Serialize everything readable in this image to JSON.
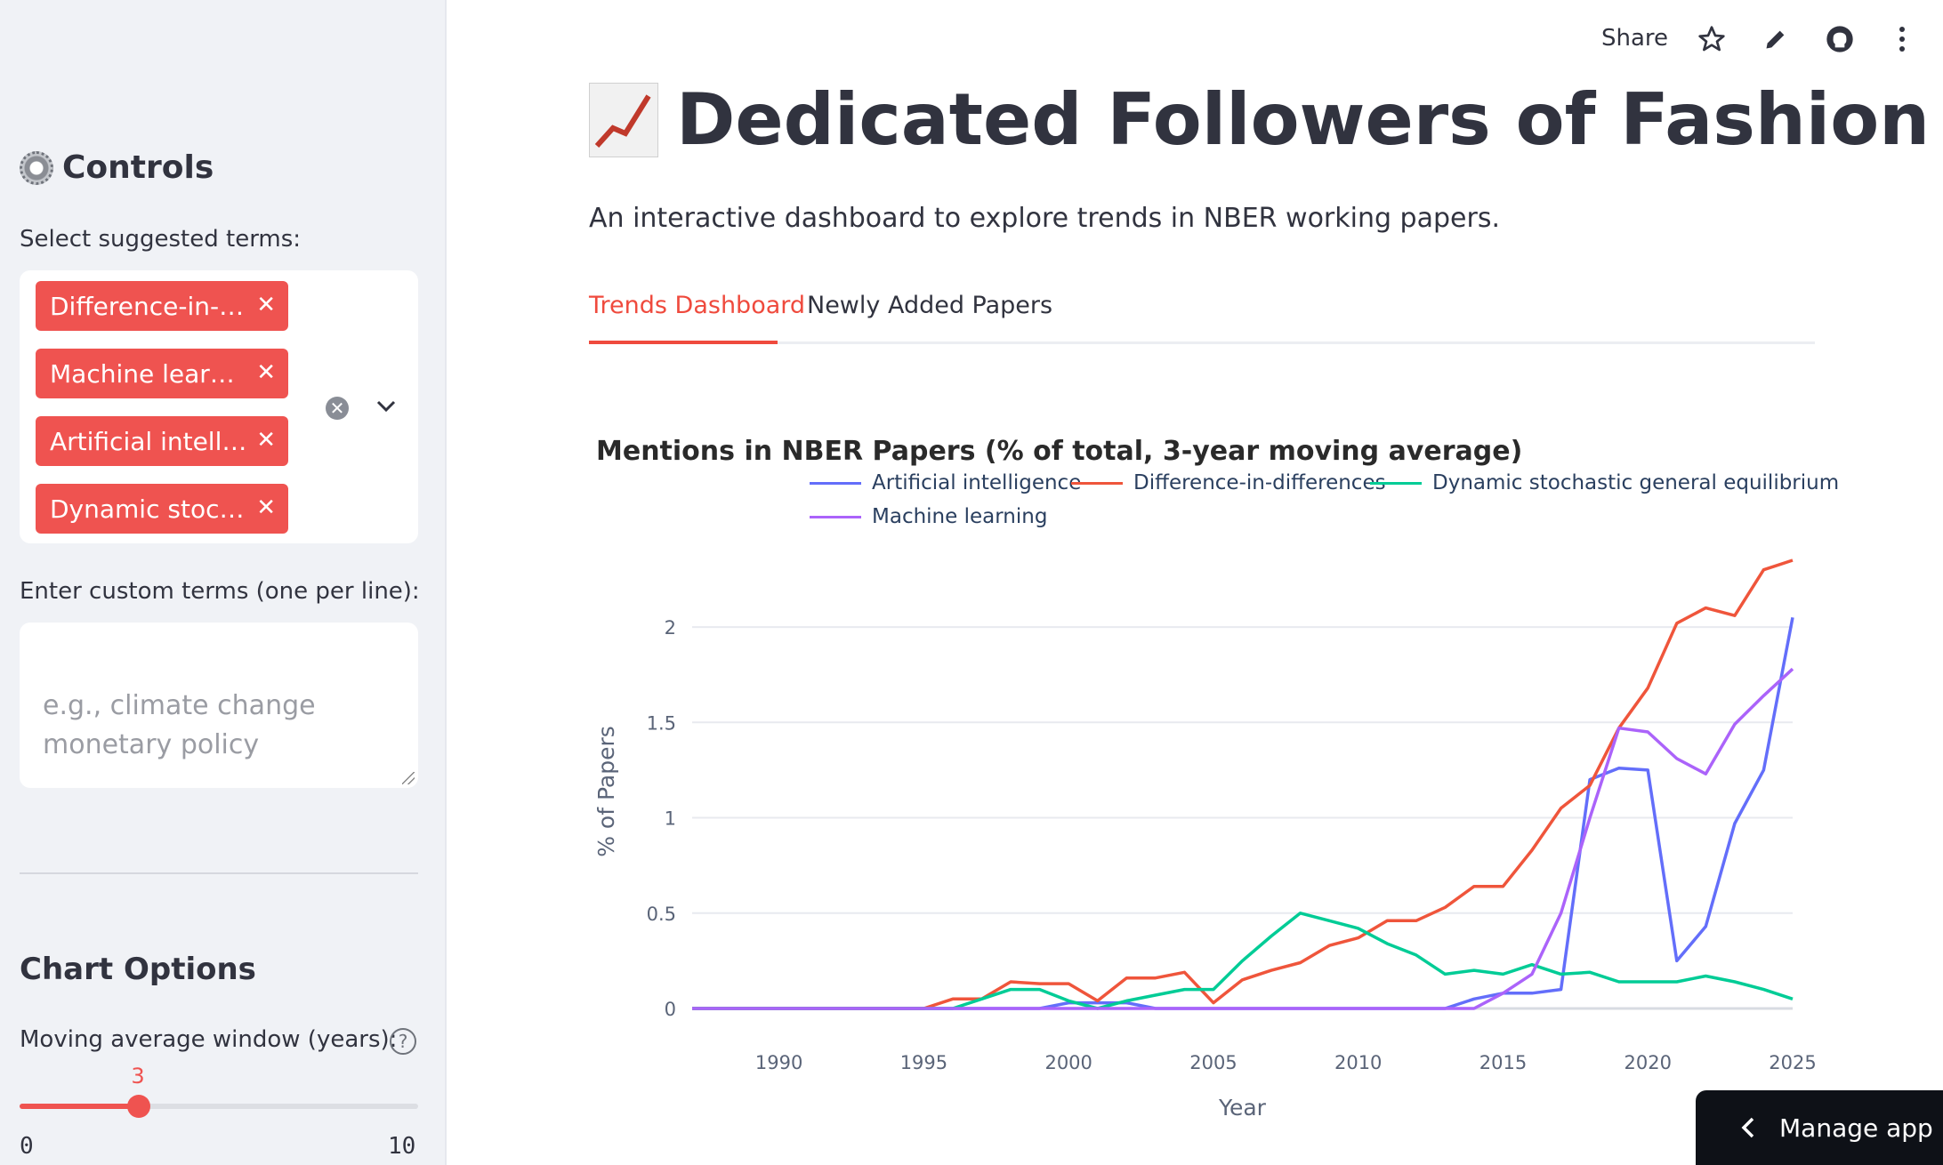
{
  "sidebar": {
    "controls_heading": "Controls",
    "suggested_label": "Select suggested terms:",
    "chips": [
      "Difference-in-…",
      "Machine lear…",
      "Artificial intell…",
      "Dynamic stoc…"
    ],
    "custom_label": "Enter custom terms (one per line):",
    "custom_placeholder": "e.g., climate change\nmonetary policy",
    "chart_options_heading": "Chart Options",
    "ma_label": "Moving average window (years):",
    "slider": {
      "value": "3",
      "min": "0",
      "max": "10",
      "fraction": 0.3
    }
  },
  "toolbar": {
    "share": "Share",
    "icons": [
      "star-icon",
      "pencil-icon",
      "github-icon",
      "more-vertical-icon"
    ]
  },
  "main": {
    "title": "Dedicated Followers of Fashion",
    "subtitle": "An interactive dashboard to explore trends in NBER working papers.",
    "tabs": [
      "Trends Dashboard",
      "Newly Added Papers"
    ],
    "active_tab": "Trends Dashboard"
  },
  "manage_app": "Manage app",
  "colors": {
    "accent": "#ef4a3d",
    "chip": "#ef5350"
  },
  "chart_data": {
    "type": "line",
    "title": "Mentions in NBER Papers (% of total, 3-year moving average)",
    "xlabel": "Year",
    "ylabel": "% of Papers",
    "xlim": [
      1987,
      2025
    ],
    "ylim": [
      0,
      2.35
    ],
    "x_ticks": [
      "1990",
      "1995",
      "2000",
      "2005",
      "2010",
      "2015",
      "2020",
      "2025"
    ],
    "y_ticks": [
      "0",
      "0.5",
      "1",
      "1.5",
      "2"
    ],
    "legend_position": "top",
    "x": [
      1987,
      1988,
      1989,
      1990,
      1991,
      1992,
      1993,
      1994,
      1995,
      1996,
      1997,
      1998,
      1999,
      2000,
      2001,
      2002,
      2003,
      2004,
      2005,
      2006,
      2007,
      2008,
      2009,
      2010,
      2011,
      2012,
      2013,
      2014,
      2015,
      2016,
      2017,
      2018,
      2019,
      2020,
      2021,
      2022,
      2023,
      2024,
      2025
    ],
    "series": [
      {
        "name": "Artificial intelligence",
        "color": "#636efa",
        "values": [
          0,
          0,
          0,
          0,
          0,
          0,
          0,
          0,
          0,
          0,
          0,
          0,
          0,
          0.03,
          0.03,
          0.03,
          0,
          0,
          0,
          0,
          0,
          0,
          0,
          0,
          0,
          0,
          0,
          0.05,
          0.08,
          0.08,
          0.1,
          1.2,
          1.26,
          1.25,
          0.25,
          0.43,
          0.97,
          1.25,
          2.05
        ]
      },
      {
        "name": "Difference-in-differences",
        "color": "#ef553b",
        "values": [
          0,
          0,
          0,
          0,
          0,
          0,
          0,
          0,
          0,
          0.05,
          0.05,
          0.14,
          0.13,
          0.13,
          0.04,
          0.16,
          0.16,
          0.19,
          0.03,
          0.15,
          0.2,
          0.24,
          0.33,
          0.37,
          0.46,
          0.46,
          0.53,
          0.64,
          0.64,
          0.83,
          1.05,
          1.17,
          1.47,
          1.68,
          2.02,
          2.1,
          2.06,
          2.3,
          2.35
        ]
      },
      {
        "name": "Dynamic stochastic general equilibrium",
        "color": "#00cc96",
        "values": [
          0,
          0,
          0,
          0,
          0,
          0,
          0,
          0,
          0,
          0,
          0.05,
          0.1,
          0.1,
          0.04,
          0,
          0.04,
          0.07,
          0.1,
          0.1,
          0.25,
          0.38,
          0.5,
          0.46,
          0.42,
          0.34,
          0.28,
          0.18,
          0.2,
          0.18,
          0.23,
          0.18,
          0.19,
          0.14,
          0.14,
          0.14,
          0.17,
          0.14,
          0.1,
          0.05
        ]
      },
      {
        "name": "Machine learning",
        "color": "#ab63fa",
        "values": [
          0,
          0,
          0,
          0,
          0,
          0,
          0,
          0,
          0,
          0,
          0,
          0,
          0,
          0,
          0,
          0,
          0,
          0,
          0,
          0,
          0,
          0,
          0,
          0,
          0,
          0,
          0,
          0,
          0.08,
          0.18,
          0.5,
          1.0,
          1.47,
          1.45,
          1.31,
          1.23,
          1.49,
          1.64,
          1.78
        ]
      }
    ]
  }
}
